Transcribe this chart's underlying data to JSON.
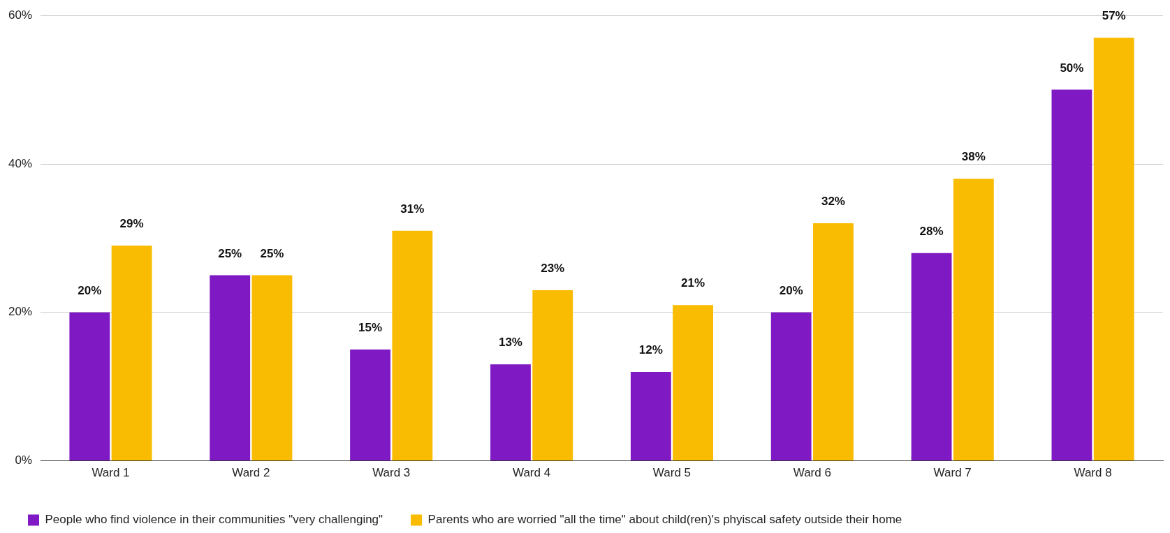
{
  "chart_data": {
    "type": "bar",
    "categories": [
      "Ward 1",
      "Ward 2",
      "Ward 3",
      "Ward 4",
      "Ward 5",
      "Ward 6",
      "Ward 7",
      "Ward 8"
    ],
    "series": [
      {
        "name": "People who find violence in their communities \"very challenging\"",
        "color": "#7e19c4",
        "values": [
          20,
          25,
          15,
          13,
          12,
          20,
          28,
          50
        ],
        "value_labels": [
          "20%",
          "25%",
          "15%",
          "13%",
          "12%",
          "20%",
          "28%",
          "50%"
        ]
      },
      {
        "name": "Parents who are worried \"all the time\" about child(ren)'s phyiscal safety outside their home",
        "color": "#f9bc02",
        "values": [
          29,
          25,
          31,
          23,
          21,
          32,
          38,
          57
        ],
        "value_labels": [
          "29%",
          "25%",
          "31%",
          "23%",
          "21%",
          "32%",
          "38%",
          "57%"
        ]
      }
    ],
    "ylim": [
      0,
      60
    ],
    "yticks": [
      {
        "value": 0,
        "label": "0%"
      },
      {
        "value": 20,
        "label": "20%"
      },
      {
        "value": 40,
        "label": "40%"
      },
      {
        "value": 60,
        "label": "60%"
      }
    ],
    "grid": "y",
    "legend": "bottom left"
  }
}
